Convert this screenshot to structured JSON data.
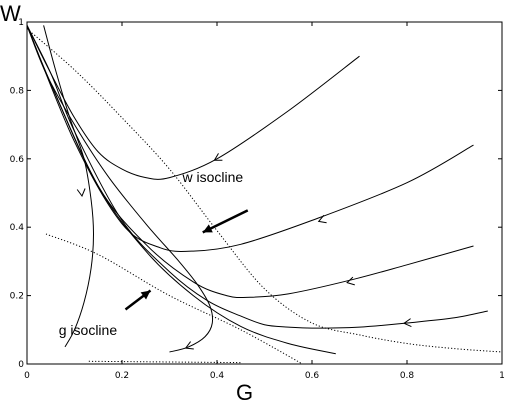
{
  "chart_data": {
    "type": "line",
    "title": "",
    "xlabel": "G",
    "ylabel": "W",
    "xlim": [
      0,
      1
    ],
    "ylim": [
      0,
      1
    ],
    "x_ticks": [
      {
        "value": 0,
        "label": "0"
      },
      {
        "value": 0.2,
        "label": "0.2"
      },
      {
        "value": 0.4,
        "label": "0.4"
      },
      {
        "value": 0.6,
        "label": "0.6"
      },
      {
        "value": 0.8,
        "label": "0.8"
      },
      {
        "value": 1,
        "label": "1"
      }
    ],
    "y_ticks": [
      {
        "value": 0,
        "label": "0"
      },
      {
        "value": 0.2,
        "label": "0.2"
      },
      {
        "value": 0.4,
        "label": "0.4"
      },
      {
        "value": 0.6,
        "label": "0.6"
      },
      {
        "value": 0.8,
        "label": "0.8"
      },
      {
        "value": 1,
        "label": "1"
      }
    ],
    "grid": false,
    "legend": "none",
    "annotations": [
      {
        "text": "w  isocline",
        "x": 0.38,
        "y": 0.48,
        "arrow_to": [
          0.37,
          0.385
        ]
      },
      {
        "text": "g  isocline",
        "x": 0.13,
        "y": 0.1,
        "arrow_to": [
          0.26,
          0.215
        ]
      }
    ],
    "series": [
      {
        "style": "dotted",
        "x": [
          0,
          0.1,
          0.2,
          0.3,
          0.4,
          0.5,
          0.6,
          0.7,
          0.8,
          0.9,
          1.0
        ],
        "y": [
          0.98,
          0.86,
          0.72,
          0.57,
          0.39,
          0.22,
          0.12,
          0.085,
          0.06,
          0.045,
          0.035
        ]
      },
      {
        "style": "dotted",
        "x": [
          0.04,
          0.15,
          0.3,
          0.45,
          0.58
        ],
        "y": [
          0.38,
          0.32,
          0.2,
          0.1,
          0.0
        ]
      },
      {
        "style": "dotted",
        "x": [
          0.13,
          0.45
        ],
        "y": [
          0.008,
          0.004
        ]
      },
      {
        "style": "solid",
        "x": [
          0.7,
          0.55,
          0.4,
          0.3,
          0.25,
          0.2,
          0.15,
          0.1,
          0.05,
          0
        ],
        "y": [
          0.9,
          0.74,
          0.6,
          0.545,
          0.545,
          0.57,
          0.62,
          0.72,
          0.85,
          0.99
        ],
        "arrows": [
          {
            "x": 0.4,
            "y": 0.6
          }
        ]
      },
      {
        "style": "solid",
        "x": [
          0.94,
          0.8,
          0.6,
          0.45,
          0.35,
          0.28,
          0.2,
          0.1,
          0
        ],
        "y": [
          0.64,
          0.53,
          0.42,
          0.35,
          0.33,
          0.34,
          0.41,
          0.65,
          0.99
        ],
        "arrows": [
          {
            "x": 0.62,
            "y": 0.42
          }
        ]
      },
      {
        "style": "solid",
        "x": [
          0.94,
          0.8,
          0.68,
          0.55,
          0.47,
          0.42,
          0.35,
          0.25,
          0.15,
          0.05,
          0
        ],
        "y": [
          0.345,
          0.29,
          0.245,
          0.205,
          0.195,
          0.2,
          0.24,
          0.35,
          0.52,
          0.82,
          0.99
        ],
        "arrows": [
          {
            "x": 0.68,
            "y": 0.24
          }
        ]
      },
      {
        "style": "solid",
        "x": [
          0.97,
          0.9,
          0.8,
          0.7,
          0.6,
          0.55,
          0.5,
          0.45,
          0.38,
          0.3,
          0.2,
          0.1,
          0.05,
          0
        ],
        "y": [
          0.155,
          0.135,
          0.12,
          0.108,
          0.105,
          0.108,
          0.115,
          0.14,
          0.185,
          0.27,
          0.42,
          0.68,
          0.85,
          0.99
        ],
        "arrows": [
          {
            "x": 0.8,
            "y": 0.12
          }
        ]
      },
      {
        "style": "solid",
        "x": [
          0.65,
          0.55,
          0.45,
          0.35,
          0.25,
          0.15,
          0.05,
          0
        ],
        "y": [
          0.03,
          0.06,
          0.11,
          0.2,
          0.33,
          0.52,
          0.82,
          0.99
        ]
      },
      {
        "style": "solid",
        "x": [
          0,
          0.04,
          0.1,
          0.17,
          0.25,
          0.32,
          0.36,
          0.385,
          0.39,
          0.375,
          0.34,
          0.3
        ],
        "y": [
          0.99,
          0.85,
          0.7,
          0.55,
          0.41,
          0.3,
          0.23,
          0.17,
          0.12,
          0.08,
          0.05,
          0.035
        ],
        "arrows": [
          {
            "x": 0.34,
            "y": 0.05
          }
        ]
      },
      {
        "style": "solid",
        "x": [
          0.035,
          0.06,
          0.09,
          0.12,
          0.135,
          0.14,
          0.135,
          0.12,
          0.1,
          0.08
        ],
        "y": [
          0.99,
          0.86,
          0.72,
          0.6,
          0.48,
          0.38,
          0.28,
          0.18,
          0.1,
          0.05
        ],
        "arrows": [
          {
            "x": 0.115,
            "y": 0.5
          }
        ]
      }
    ]
  }
}
